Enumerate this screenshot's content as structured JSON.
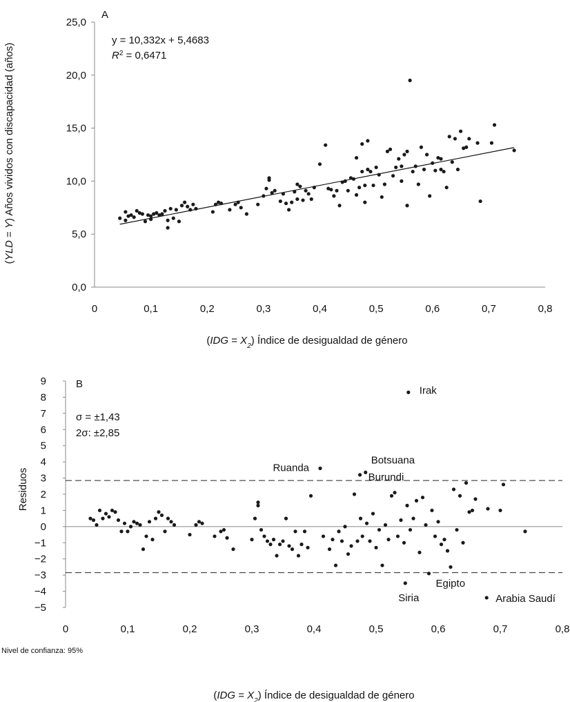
{
  "chart_data": [
    {
      "type": "scatter",
      "panel_label": "A",
      "equation": "y = 10,332x + 5,4683",
      "r2_symbol": "R",
      "r2_exp": "2",
      "r2_value": " = 0,6471",
      "ylabel_parts": [
        "(",
        "YLD",
        " = ",
        "Y",
        ") Años vividos con discapacidad (años)"
      ],
      "xlabel_parts": [
        "(",
        "IDG",
        " = ",
        "X",
        "2",
        ") Índice de desigualdad de género"
      ],
      "xlim": [
        0,
        0.8
      ],
      "ylim": [
        0,
        25
      ],
      "x_ticks": [
        0,
        0.1,
        0.2,
        0.3,
        0.4,
        0.5,
        0.6,
        0.7,
        0.8
      ],
      "x_tick_labels": [
        "0",
        "0,1",
        "0,2",
        "0,3",
        "0,4",
        "0,5",
        "0,6",
        "0,7",
        "0,8"
      ],
      "y_ticks": [
        0,
        5,
        10,
        15,
        20,
        25
      ],
      "y_tick_labels": [
        "0,0",
        "5,0",
        "10,0",
        "15,0",
        "20,0",
        "25,0"
      ],
      "trendline": {
        "slope": 10.332,
        "intercept": 5.4683,
        "x_range": [
          0.045,
          0.745
        ]
      },
      "points": [
        [
          0.045,
          6.5
        ],
        [
          0.055,
          6.3
        ],
        [
          0.055,
          7.1
        ],
        [
          0.06,
          6.7
        ],
        [
          0.065,
          6.8
        ],
        [
          0.07,
          6.6
        ],
        [
          0.075,
          7.2
        ],
        [
          0.08,
          7.0
        ],
        [
          0.085,
          6.9
        ],
        [
          0.09,
          6.2
        ],
        [
          0.095,
          6.8
        ],
        [
          0.1,
          6.4
        ],
        [
          0.1,
          6.7
        ],
        [
          0.105,
          6.9
        ],
        [
          0.11,
          7.0
        ],
        [
          0.115,
          6.8
        ],
        [
          0.12,
          6.9
        ],
        [
          0.125,
          7.2
        ],
        [
          0.13,
          6.3
        ],
        [
          0.13,
          5.6
        ],
        [
          0.135,
          7.4
        ],
        [
          0.14,
          6.5
        ],
        [
          0.145,
          7.3
        ],
        [
          0.15,
          6.2
        ],
        [
          0.155,
          7.7
        ],
        [
          0.16,
          8.0
        ],
        [
          0.165,
          7.6
        ],
        [
          0.17,
          7.3
        ],
        [
          0.175,
          7.8
        ],
        [
          0.18,
          7.4
        ],
        [
          0.21,
          7.1
        ],
        [
          0.215,
          7.8
        ],
        [
          0.22,
          8.0
        ],
        [
          0.225,
          7.9
        ],
        [
          0.24,
          7.3
        ],
        [
          0.25,
          7.8
        ],
        [
          0.255,
          8.0
        ],
        [
          0.26,
          7.5
        ],
        [
          0.27,
          6.9
        ],
        [
          0.29,
          7.8
        ],
        [
          0.3,
          8.6
        ],
        [
          0.305,
          9.3
        ],
        [
          0.31,
          10.1
        ],
        [
          0.31,
          10.3
        ],
        [
          0.315,
          8.9
        ],
        [
          0.32,
          9.1
        ],
        [
          0.33,
          8.1
        ],
        [
          0.335,
          8.8
        ],
        [
          0.34,
          7.9
        ],
        [
          0.345,
          7.3
        ],
        [
          0.35,
          8.0
        ],
        [
          0.355,
          9.0
        ],
        [
          0.36,
          9.7
        ],
        [
          0.36,
          8.3
        ],
        [
          0.365,
          9.5
        ],
        [
          0.37,
          8.2
        ],
        [
          0.375,
          9.1
        ],
        [
          0.38,
          8.8
        ],
        [
          0.385,
          8.3
        ],
        [
          0.39,
          9.4
        ],
        [
          0.4,
          11.6
        ],
        [
          0.41,
          13.4
        ],
        [
          0.415,
          9.3
        ],
        [
          0.42,
          9.2
        ],
        [
          0.425,
          8.6
        ],
        [
          0.43,
          9.1
        ],
        [
          0.435,
          7.7
        ],
        [
          0.44,
          9.9
        ],
        [
          0.445,
          10.0
        ],
        [
          0.45,
          9.1
        ],
        [
          0.455,
          10.3
        ],
        [
          0.46,
          10.2
        ],
        [
          0.465,
          12.2
        ],
        [
          0.465,
          8.7
        ],
        [
          0.47,
          9.4
        ],
        [
          0.475,
          10.9
        ],
        [
          0.475,
          13.5
        ],
        [
          0.48,
          9.6
        ],
        [
          0.48,
          8.0
        ],
        [
          0.485,
          11.1
        ],
        [
          0.485,
          13.8
        ],
        [
          0.49,
          10.9
        ],
        [
          0.495,
          9.6
        ],
        [
          0.5,
          11.3
        ],
        [
          0.505,
          10.6
        ],
        [
          0.51,
          8.5
        ],
        [
          0.515,
          9.7
        ],
        [
          0.52,
          12.8
        ],
        [
          0.525,
          13.0
        ],
        [
          0.53,
          10.5
        ],
        [
          0.535,
          11.3
        ],
        [
          0.54,
          12.1
        ],
        [
          0.545,
          10.0
        ],
        [
          0.545,
          11.4
        ],
        [
          0.55,
          12.5
        ],
        [
          0.555,
          7.7
        ],
        [
          0.555,
          12.8
        ],
        [
          0.56,
          19.5
        ],
        [
          0.565,
          10.9
        ],
        [
          0.57,
          11.4
        ],
        [
          0.575,
          9.7
        ],
        [
          0.58,
          13.2
        ],
        [
          0.585,
          11.1
        ],
        [
          0.59,
          12.5
        ],
        [
          0.595,
          8.6
        ],
        [
          0.6,
          11.7
        ],
        [
          0.605,
          11.0
        ],
        [
          0.61,
          12.2
        ],
        [
          0.615,
          12.1
        ],
        [
          0.615,
          11.1
        ],
        [
          0.62,
          10.9
        ],
        [
          0.625,
          9.4
        ],
        [
          0.63,
          14.2
        ],
        [
          0.635,
          11.8
        ],
        [
          0.64,
          14.0
        ],
        [
          0.645,
          11.1
        ],
        [
          0.65,
          14.7
        ],
        [
          0.655,
          13.1
        ],
        [
          0.66,
          13.2
        ],
        [
          0.665,
          14.0
        ],
        [
          0.68,
          13.6
        ],
        [
          0.685,
          8.1
        ],
        [
          0.705,
          13.6
        ],
        [
          0.71,
          15.3
        ],
        [
          0.745,
          12.9
        ]
      ]
    },
    {
      "type": "scatter",
      "panel_label": "B",
      "sigma_label": "σ = ±1,43",
      "two_sigma_label": "2σ: ±2,85",
      "ylabel": "Residuos",
      "xlabel_parts": [
        "(",
        "IDG",
        " = ",
        "X",
        "2",
        ") Índice de desigualdad de género"
      ],
      "footnote": "Nivel de confianza: 95%",
      "xlim": [
        0,
        0.8
      ],
      "ylim": [
        -5,
        9
      ],
      "x_ticks": [
        0,
        0.1,
        0.2,
        0.3,
        0.4,
        0.5,
        0.6,
        0.7,
        0.8
      ],
      "x_tick_labels": [
        "0",
        "0,1",
        "0,2",
        "0,3",
        "0,4",
        "0,5",
        "0,6",
        "0,7",
        "0,8"
      ],
      "y_ticks": [
        -5,
        -4,
        -3,
        -2,
        -1,
        0,
        1,
        2,
        3,
        4,
        5,
        6,
        7,
        8,
        9
      ],
      "y_tick_labels": [
        "−5",
        "−4",
        "−3",
        "−2",
        "−1",
        "0",
        "1",
        "2",
        "3",
        "4",
        "5",
        "6",
        "7",
        "8",
        "9"
      ],
      "threshold_lines": [
        2.85,
        -2.85
      ],
      "annotations": [
        {
          "text": "Irak",
          "x": 0.552,
          "y": 8.3
        },
        {
          "text": "Ruanda",
          "x": 0.41,
          "y": 3.6
        },
        {
          "text": "Botsuana",
          "x": 0.483,
          "y": 3.35
        },
        {
          "text": "Burundi",
          "x": 0.474,
          "y": 3.2
        },
        {
          "text": "Egipto",
          "x": 0.585,
          "y": -2.9
        },
        {
          "text": "Siria",
          "x": 0.547,
          "y": -3.5
        },
        {
          "text": "Arabia Saudí",
          "x": 0.678,
          "y": -4.4
        }
      ],
      "points": [
        [
          0.04,
          0.5
        ],
        [
          0.045,
          0.4
        ],
        [
          0.05,
          0.1
        ],
        [
          0.055,
          1.0
        ],
        [
          0.06,
          0.5
        ],
        [
          0.065,
          0.8
        ],
        [
          0.07,
          0.6
        ],
        [
          0.075,
          1.0
        ],
        [
          0.08,
          0.9
        ],
        [
          0.085,
          0.4
        ],
        [
          0.09,
          -0.3
        ],
        [
          0.095,
          0.2
        ],
        [
          0.1,
          -0.3
        ],
        [
          0.105,
          0.0
        ],
        [
          0.11,
          0.3
        ],
        [
          0.115,
          0.2
        ],
        [
          0.12,
          0.1
        ],
        [
          0.125,
          -1.4
        ],
        [
          0.13,
          -0.6
        ],
        [
          0.135,
          0.3
        ],
        [
          0.14,
          -0.8
        ],
        [
          0.145,
          0.5
        ],
        [
          0.15,
          0.9
        ],
        [
          0.155,
          0.7
        ],
        [
          0.16,
          -0.3
        ],
        [
          0.165,
          0.5
        ],
        [
          0.17,
          0.3
        ],
        [
          0.175,
          0.1
        ],
        [
          0.2,
          -0.5
        ],
        [
          0.21,
          0.1
        ],
        [
          0.215,
          0.3
        ],
        [
          0.22,
          0.2
        ],
        [
          0.24,
          -0.6
        ],
        [
          0.25,
          -0.3
        ],
        [
          0.255,
          -0.2
        ],
        [
          0.26,
          -0.7
        ],
        [
          0.27,
          -1.4
        ],
        [
          0.3,
          -0.8
        ],
        [
          0.305,
          0.5
        ],
        [
          0.31,
          1.3
        ],
        [
          0.31,
          1.5
        ],
        [
          0.315,
          -0.2
        ],
        [
          0.32,
          -0.6
        ],
        [
          0.325,
          -0.9
        ],
        [
          0.33,
          -1.1
        ],
        [
          0.335,
          -0.8
        ],
        [
          0.34,
          -1.8
        ],
        [
          0.345,
          -1.1
        ],
        [
          0.35,
          -0.9
        ],
        [
          0.355,
          0.5
        ],
        [
          0.36,
          -1.2
        ],
        [
          0.365,
          -1.4
        ],
        [
          0.37,
          -0.3
        ],
        [
          0.375,
          -1.8
        ],
        [
          0.38,
          -1.1
        ],
        [
          0.385,
          -0.3
        ],
        [
          0.39,
          -1.3
        ],
        [
          0.395,
          1.9
        ],
        [
          0.41,
          3.6
        ],
        [
          0.415,
          -0.6
        ],
        [
          0.425,
          -1.4
        ],
        [
          0.43,
          -0.8
        ],
        [
          0.435,
          -2.4
        ],
        [
          0.44,
          -0.3
        ],
        [
          0.445,
          -0.9
        ],
        [
          0.45,
          0.0
        ],
        [
          0.455,
          -1.7
        ],
        [
          0.46,
          -1.2
        ],
        [
          0.465,
          2.0
        ],
        [
          0.47,
          -0.9
        ],
        [
          0.474,
          3.2
        ],
        [
          0.475,
          0.5
        ],
        [
          0.478,
          -0.6
        ],
        [
          0.483,
          3.35
        ],
        [
          0.485,
          0.2
        ],
        [
          0.49,
          -0.9
        ],
        [
          0.495,
          0.8
        ],
        [
          0.5,
          -1.3
        ],
        [
          0.505,
          -0.2
        ],
        [
          0.51,
          -2.4
        ],
        [
          0.515,
          0.1
        ],
        [
          0.52,
          -0.8
        ],
        [
          0.525,
          1.9
        ],
        [
          0.53,
          2.1
        ],
        [
          0.535,
          -0.6
        ],
        [
          0.54,
          0.4
        ],
        [
          0.545,
          -1.0
        ],
        [
          0.547,
          -3.5
        ],
        [
          0.55,
          1.3
        ],
        [
          0.552,
          8.3
        ],
        [
          0.555,
          -0.2
        ],
        [
          0.56,
          0.5
        ],
        [
          0.565,
          1.6
        ],
        [
          0.57,
          -1.6
        ],
        [
          0.575,
          1.8
        ],
        [
          0.58,
          0.1
        ],
        [
          0.585,
          -2.9
        ],
        [
          0.59,
          1.0
        ],
        [
          0.595,
          -0.6
        ],
        [
          0.6,
          0.3
        ],
        [
          0.605,
          -1.1
        ],
        [
          0.61,
          -0.8
        ],
        [
          0.615,
          -1.5
        ],
        [
          0.62,
          -2.5
        ],
        [
          0.625,
          2.3
        ],
        [
          0.63,
          -0.2
        ],
        [
          0.635,
          1.9
        ],
        [
          0.64,
          -1.0
        ],
        [
          0.645,
          2.7
        ],
        [
          0.65,
          0.9
        ],
        [
          0.655,
          1.0
        ],
        [
          0.66,
          1.7
        ],
        [
          0.678,
          -4.4
        ],
        [
          0.68,
          1.1
        ],
        [
          0.7,
          1.0
        ],
        [
          0.705,
          2.6
        ],
        [
          0.74,
          -0.3
        ]
      ]
    }
  ]
}
